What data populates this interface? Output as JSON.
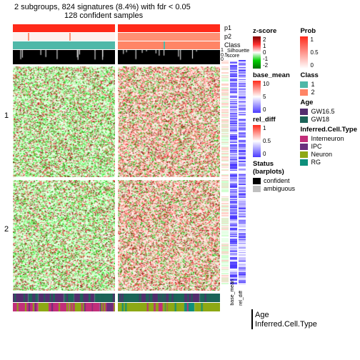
{
  "title": "2 subgroups, 824 signatures (8.4%) with fdr < 0.05",
  "subtitle": "128 confident samples",
  "rowGroups": [
    "1",
    "2"
  ],
  "topTracks": {
    "p1": {
      "left_color": "#ff2a1a",
      "right_color": "#ff2a1a",
      "label": "p1"
    },
    "p2": {
      "left_color": "#fff1ee",
      "right_color": "#ff9074",
      "label": "p2",
      "left_streaks": [
        "#ff9074",
        "#ff9074"
      ]
    },
    "Class": {
      "left_color": "#4fb8a8",
      "right_color": "#ff8566",
      "label": "Class"
    }
  },
  "silhouette": {
    "label": "Silhouette\nscore",
    "axis": [
      "1",
      "0.5",
      "0"
    ],
    "bg": "#000000",
    "spike": "#ffffff"
  },
  "heatmap": {
    "block_h": 155,
    "left": {
      "base": "#e8ffe0",
      "dots": [
        "#00c800",
        "#a0ffa0",
        "#ff3030",
        "#7f0000",
        "#ffffff",
        "#50ff50",
        "#c8ffc8"
      ]
    },
    "right": {
      "base": "#ffe8e0",
      "dots": [
        "#ff3030",
        "#00c800",
        "#7f0000",
        "#ffffff",
        "#a0ffa0",
        "#ff7060",
        "#ffc8c8"
      ]
    }
  },
  "annCols": {
    "zscore": {
      "label": "z-score",
      "stops": [
        "#7f0000",
        "#ff3030",
        "#ffffff",
        "#00d000",
        "#007000"
      ],
      "ticks": [
        "2",
        "1",
        "0",
        "-1",
        "-2"
      ]
    },
    "base_mean": {
      "label": "base_mean",
      "stops": [
        "#ff2a1a",
        "#ffffff",
        "#4a3aff"
      ],
      "ticks": [
        "10",
        "5",
        "0"
      ]
    },
    "rel_diff": {
      "label": "rel_diff",
      "stops": [
        "#ff2a1a",
        "#ffffff",
        "#4a3aff"
      ],
      "ticks": [
        "1",
        "0.5",
        "0"
      ]
    },
    "sideLabels": [
      "base_mean",
      "rel_diff"
    ]
  },
  "bottomTracks": {
    "Age": {
      "label": "Age",
      "left_segs": [
        [
          "#532d6e",
          0.15
        ],
        [
          "#1c6458",
          0.1
        ],
        [
          "#532d6e",
          0.25
        ],
        [
          "#1c6458",
          0.1
        ],
        [
          "#532d6e",
          0.2
        ],
        [
          "#1c6458",
          0.2
        ]
      ],
      "right_segs": [
        [
          "#1c6458",
          0.2
        ],
        [
          "#532d6e",
          0.3
        ],
        [
          "#1c6458",
          0.15
        ],
        [
          "#532d6e",
          0.15
        ],
        [
          "#1c6458",
          0.2
        ]
      ]
    },
    "Inferred": {
      "label": "Inferred.Cell.Type",
      "left_segs": [
        [
          "#c22e7a",
          0.25
        ],
        [
          "#8da814",
          0.1
        ],
        [
          "#c22e7a",
          0.2
        ],
        [
          "#8da814",
          0.15
        ],
        [
          "#c22e7a",
          0.15
        ],
        [
          "#6a2f7d",
          0.15
        ]
      ],
      "right_segs": [
        [
          "#8da814",
          0.35
        ],
        [
          "#c22e7a",
          0.1
        ],
        [
          "#8da814",
          0.2
        ],
        [
          "#0e8f7b",
          0.1
        ],
        [
          "#8da814",
          0.25
        ]
      ]
    }
  },
  "legends": {
    "Prob": {
      "label": "Prob",
      "stops": [
        "#ff2a1a",
        "#ffffff"
      ],
      "ticks": [
        "1",
        "0.5",
        "0"
      ]
    },
    "Class": {
      "label": "Class",
      "items": [
        [
          "1",
          "#4fb8a8"
        ],
        [
          "2",
          "#ff8566"
        ]
      ]
    },
    "Age": {
      "label": "Age",
      "items": [
        [
          "GW16.5",
          "#532d6e"
        ],
        [
          "GW18",
          "#1c6458"
        ]
      ]
    },
    "Inferred": {
      "label": "Inferred.Cell.Type",
      "items": [
        [
          "Interneuron",
          "#c22e7a"
        ],
        [
          "IPC",
          "#6a2f7d"
        ],
        [
          "Neuron",
          "#8da814"
        ],
        [
          "RG",
          "#0e8f7b"
        ]
      ]
    },
    "Status": {
      "label": "Status (barplots)",
      "items": [
        [
          "confident",
          "#000000"
        ],
        [
          "ambiguous",
          "#bfbfbf"
        ]
      ]
    }
  }
}
